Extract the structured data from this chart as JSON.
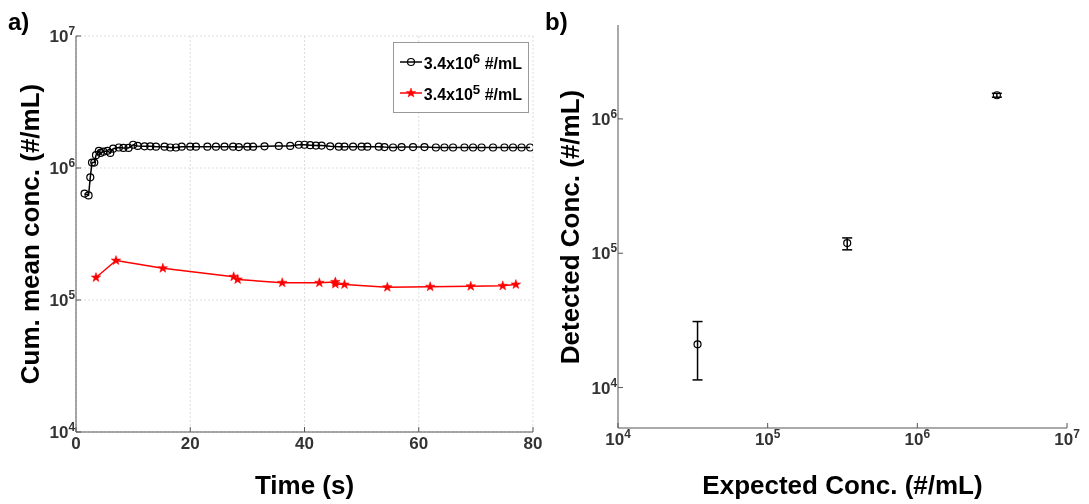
{
  "chart_data": [
    {
      "type": "line",
      "title": "a)",
      "xlabel": "Time (s)",
      "ylabel": "Cum. mean conc. (#/mL)",
      "log": "y",
      "grid": true,
      "legend": "top right",
      "line_style": "solid",
      "xlim": [
        0,
        80
      ],
      "xticks": [
        0,
        20,
        40,
        60,
        80
      ],
      "ylim": [
        10000,
        10000000
      ],
      "yticks": [
        {
          "value": 10000,
          "label": "10$^{4}$"
        },
        {
          "value": 100000,
          "label": "10$^{5}$"
        },
        {
          "value": 1000000,
          "label": "10$^{6}$"
        },
        {
          "value": 10000000,
          "label": "10$^{7}$"
        }
      ],
      "series": [
        {
          "name": "3.4x10$^{6}$ #/mL",
          "color": "#000000",
          "marker": "circle",
          "x": [
            1.5,
            2.2,
            2.5,
            2.8,
            3.2,
            3.5,
            4.0,
            4.3,
            4.8,
            5.5,
            6.0,
            6.5,
            7.5,
            8.3,
            9.2,
            10.0,
            10.8,
            12,
            13,
            14,
            15.5,
            16.5,
            17.5,
            18.5,
            20,
            21,
            23,
            24.5,
            26,
            27.5,
            28.5,
            30,
            31,
            33,
            35.5,
            37.5,
            39,
            40,
            41,
            42,
            43,
            44.5,
            46,
            47,
            48.5,
            50,
            51,
            53,
            54,
            55.5,
            57,
            59,
            61,
            63,
            64.5,
            66,
            68,
            69.5,
            71,
            73,
            75,
            76.5,
            78,
            79.5
          ],
          "values": [
            640000,
            620000,
            850000,
            1100000,
            1100000,
            1250000,
            1350000,
            1300000,
            1330000,
            1350000,
            1300000,
            1400000,
            1430000,
            1420000,
            1420000,
            1500000,
            1470000,
            1460000,
            1460000,
            1450000,
            1450000,
            1430000,
            1430000,
            1450000,
            1450000,
            1450000,
            1450000,
            1450000,
            1450000,
            1450000,
            1440000,
            1450000,
            1450000,
            1460000,
            1470000,
            1470000,
            1500000,
            1500000,
            1490000,
            1480000,
            1480000,
            1460000,
            1450000,
            1450000,
            1450000,
            1450000,
            1450000,
            1450000,
            1440000,
            1430000,
            1440000,
            1440000,
            1440000,
            1430000,
            1430000,
            1430000,
            1430000,
            1430000,
            1430000,
            1430000,
            1430000,
            1430000,
            1430000,
            1430000
          ]
        },
        {
          "name": "3.4x10$^{5}$ #/mL",
          "color": "#ff0000",
          "marker": "star",
          "x": [
            3.5,
            7.0,
            15.2,
            27.6,
            28.3,
            36.1,
            42.6,
            45.4,
            45.4,
            47.0,
            54.5,
            62.0,
            69.1,
            74.7,
            77.0
          ],
          "values": [
            148000,
            199000,
            174000,
            150000,
            143000,
            135000,
            135000,
            137000,
            132000,
            131000,
            125000,
            126000,
            127000,
            128000,
            131000
          ]
        }
      ]
    },
    {
      "type": "scatter",
      "title": "b)",
      "xlabel": "Expected Conc. (#/mL)",
      "ylabel": "Detected Conc. (#/mL)",
      "log": "xy",
      "marker": "circle",
      "xlim": [
        10000,
        10000000
      ],
      "xticks": [
        {
          "value": 10000,
          "label": "10$^{4}$"
        },
        {
          "value": 100000,
          "label": "10$^{5}$"
        },
        {
          "value": 1000000,
          "label": "10$^{6}$"
        },
        {
          "value": 10000000,
          "label": "10$^{7}$"
        }
      ],
      "ylim": [
        5000,
        5000000
      ],
      "yticks": [
        {
          "value": 10000,
          "label": "10$^{4}$"
        },
        {
          "value": 100000,
          "label": "10$^{5}$"
        },
        {
          "value": 1000000,
          "label": "10$^{6}$"
        }
      ],
      "series": [
        {
          "color": "#000000",
          "x": [
            34000,
            340000,
            3400000
          ],
          "values": [
            21000,
            119000,
            1500000
          ],
          "errors": [
            [
              11400,
              31000
            ],
            [
              106000,
              130000
            ],
            [
              1450000,
              1550000
            ]
          ]
        }
      ]
    }
  ]
}
